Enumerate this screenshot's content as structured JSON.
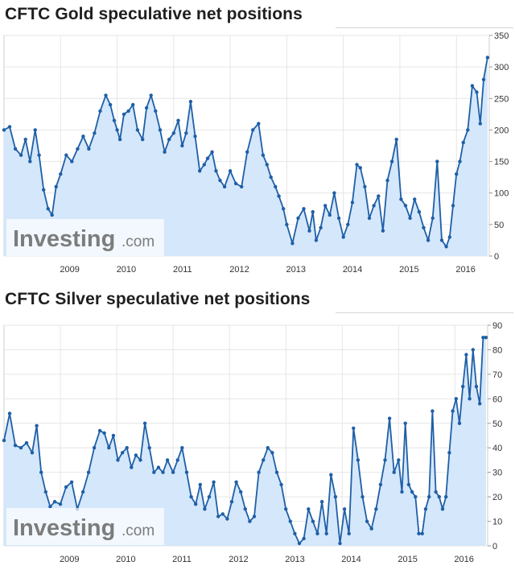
{
  "brand": {
    "name": "Investing",
    "suffix": ".com"
  },
  "chart_data": [
    {
      "type": "area",
      "title": "CFTC Gold speculative net positions",
      "x_tick_labels": [
        "2009",
        "2010",
        "2011",
        "2012",
        "2013",
        "2014",
        "2015",
        "2016"
      ],
      "y_ticks": [
        0,
        50,
        100,
        150,
        200,
        250,
        300,
        350
      ],
      "ylim": [
        0,
        350
      ],
      "xlim": [
        2008.0,
        2016.58
      ],
      "grid": true,
      "legend": "none",
      "series": [
        {
          "color": "#1f5fa6",
          "fill": "#d4e7fb",
          "x": [
            2008.0,
            2008.1,
            2008.2,
            2008.3,
            2008.38,
            2008.46,
            2008.55,
            2008.62,
            2008.7,
            2008.78,
            2008.85,
            2008.92,
            2009.0,
            2009.1,
            2009.2,
            2009.3,
            2009.4,
            2009.5,
            2009.6,
            2009.7,
            2009.8,
            2009.88,
            2009.95,
            2010.0,
            2010.05,
            2010.12,
            2010.2,
            2010.28,
            2010.36,
            2010.45,
            2010.52,
            2010.6,
            2010.68,
            2010.76,
            2010.84,
            2010.92,
            2011.0,
            2011.08,
            2011.15,
            2011.22,
            2011.3,
            2011.38,
            2011.46,
            2011.54,
            2011.6,
            2011.68,
            2011.75,
            2011.82,
            2011.9,
            2012.0,
            2012.1,
            2012.2,
            2012.3,
            2012.4,
            2012.5,
            2012.58,
            2012.65,
            2012.72,
            2012.8,
            2012.86,
            2012.94,
            2013.0,
            2013.1,
            2013.2,
            2013.3,
            2013.4,
            2013.46,
            2013.52,
            2013.6,
            2013.68,
            2013.76,
            2013.84,
            2013.92,
            2014.0,
            2014.08,
            2014.16,
            2014.24,
            2014.3,
            2014.38,
            2014.46,
            2014.54,
            2014.62,
            2014.7,
            2014.78,
            2014.86,
            2014.94,
            2015.02,
            2015.1,
            2015.18,
            2015.26,
            2015.34,
            2015.42,
            2015.5,
            2015.58,
            2015.66,
            2015.74,
            2015.82,
            2015.88,
            2015.94,
            2016.0,
            2016.06,
            2016.12,
            2016.2,
            2016.28,
            2016.36,
            2016.42,
            2016.48,
            2016.55
          ],
          "values": [
            200,
            205,
            170,
            160,
            185,
            150,
            200,
            160,
            105,
            75,
            65,
            110,
            130,
            160,
            150,
            170,
            190,
            170,
            195,
            230,
            255,
            240,
            215,
            200,
            185,
            225,
            230,
            240,
            200,
            185,
            235,
            255,
            230,
            200,
            165,
            185,
            195,
            215,
            175,
            195,
            245,
            190,
            135,
            145,
            155,
            165,
            135,
            120,
            110,
            135,
            115,
            110,
            165,
            200,
            210,
            160,
            145,
            125,
            110,
            95,
            75,
            50,
            20,
            60,
            75,
            40,
            70,
            25,
            45,
            80,
            65,
            100,
            60,
            30,
            50,
            85,
            145,
            140,
            110,
            60,
            80,
            95,
            40,
            120,
            150,
            185,
            90,
            80,
            60,
            90,
            70,
            45,
            25,
            60,
            150,
            25,
            15,
            30,
            80,
            130,
            150,
            180,
            200,
            270,
            260,
            210,
            280,
            315
          ]
        }
      ]
    },
    {
      "type": "area",
      "title": "CFTC Silver speculative net positions",
      "x_tick_labels": [
        "2009",
        "2010",
        "2011",
        "2012",
        "2013",
        "2014",
        "2015",
        "2016"
      ],
      "y_ticks": [
        0,
        10,
        20,
        30,
        40,
        50,
        60,
        70,
        80,
        90
      ],
      "ylim": [
        0,
        90
      ],
      "xlim": [
        2008.0,
        2016.58
      ],
      "grid": true,
      "legend": "none",
      "series": [
        {
          "color": "#1f5fa6",
          "fill": "#d4e7fb",
          "x": [
            2008.0,
            2008.1,
            2008.2,
            2008.3,
            2008.4,
            2008.5,
            2008.58,
            2008.66,
            2008.74,
            2008.82,
            2008.9,
            2009.0,
            2009.1,
            2009.2,
            2009.3,
            2009.4,
            2009.5,
            2009.6,
            2009.7,
            2009.78,
            2009.86,
            2009.94,
            2010.02,
            2010.1,
            2010.18,
            2010.26,
            2010.34,
            2010.42,
            2010.5,
            2010.58,
            2010.66,
            2010.74,
            2010.82,
            2010.9,
            2011.0,
            2011.08,
            2011.16,
            2011.24,
            2011.32,
            2011.4,
            2011.48,
            2011.56,
            2011.64,
            2011.72,
            2011.8,
            2011.88,
            2011.96,
            2012.04,
            2012.12,
            2012.2,
            2012.28,
            2012.36,
            2012.44,
            2012.52,
            2012.6,
            2012.68,
            2012.76,
            2012.84,
            2012.92,
            2013.0,
            2013.08,
            2013.16,
            2013.24,
            2013.32,
            2013.4,
            2013.48,
            2013.56,
            2013.64,
            2013.72,
            2013.8,
            2013.88,
            2013.96,
            2014.04,
            2014.12,
            2014.2,
            2014.28,
            2014.36,
            2014.44,
            2014.52,
            2014.6,
            2014.68,
            2014.76,
            2014.84,
            2014.92,
            2015.0,
            2015.06,
            2015.12,
            2015.18,
            2015.24,
            2015.3,
            2015.36,
            2015.42,
            2015.48,
            2015.54,
            2015.6,
            2015.66,
            2015.72,
            2015.78,
            2015.84,
            2015.9,
            2015.96,
            2016.02,
            2016.08,
            2016.14,
            2016.2,
            2016.26,
            2016.32,
            2016.38,
            2016.44,
            2016.5,
            2016.55
          ],
          "values": [
            43,
            54,
            41,
            40,
            42,
            38,
            49,
            30,
            22,
            16,
            18,
            17,
            24,
            26,
            15,
            22,
            30,
            40,
            47,
            46,
            40,
            45,
            35,
            38,
            40,
            32,
            37,
            35,
            50,
            40,
            30,
            32,
            30,
            35,
            30,
            35,
            40,
            30,
            20,
            17,
            25,
            15,
            20,
            26,
            12,
            13,
            11,
            18,
            26,
            22,
            15,
            10,
            12,
            30,
            35,
            40,
            38,
            30,
            25,
            15,
            10,
            5,
            1,
            3,
            15,
            10,
            5,
            18,
            5,
            29,
            20,
            1,
            15,
            5,
            48,
            35,
            20,
            10,
            7,
            15,
            25,
            35,
            52,
            30,
            35,
            22,
            50,
            25,
            22,
            20,
            5,
            5,
            15,
            20,
            55,
            22,
            20,
            15,
            20,
            38,
            55,
            60,
            50,
            65,
            78,
            60,
            80,
            65,
            58,
            85,
            85
          ]
        }
      ]
    }
  ]
}
